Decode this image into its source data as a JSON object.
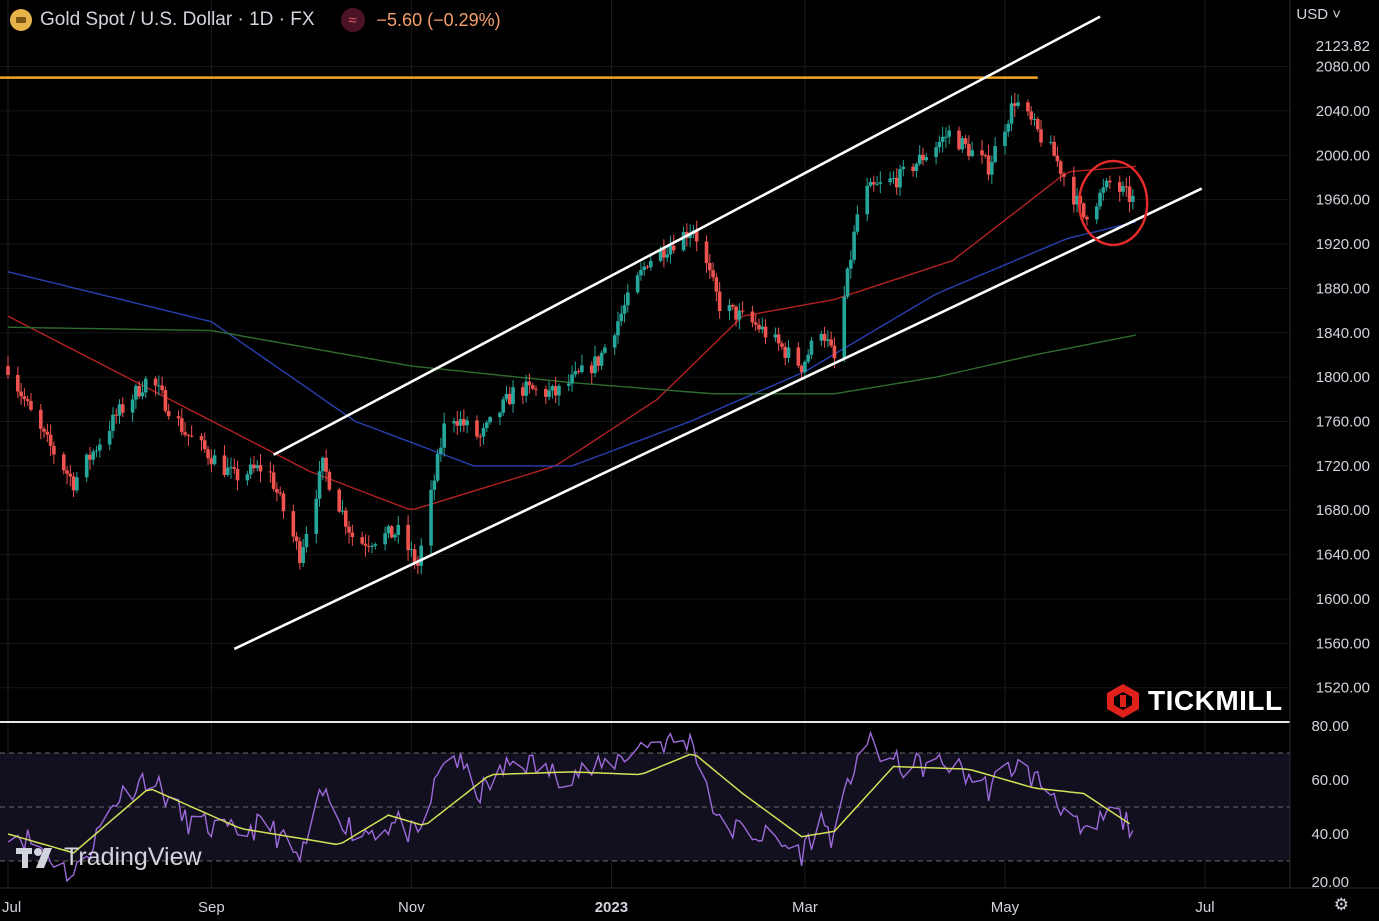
{
  "header": {
    "symbol_title": "Gold Spot / U.S. Dollar · 1D · FX",
    "change": "−5.60 (−0.29%)",
    "currency": "USD"
  },
  "branding": {
    "broker_logo_text": "TICKMILL",
    "platform_logo_text": "TradingView"
  },
  "icons": [
    "gold-coin-icon",
    "oscillator-icon",
    "chevron-down-icon",
    "tickmill-logo-icon",
    "tradingview-logo-icon",
    "settings-icon"
  ],
  "colors": {
    "background": "#000000",
    "up_candle": "#26a69a",
    "down_candle": "#ef5350",
    "resistance_line": "#f5a623",
    "channel_lines": "#ffffff",
    "ma_red": "#b22222",
    "ma_blue": "#2a3fb0",
    "ma_green": "#2e6b2e",
    "rsi_line": "#9c6ad9",
    "rsi_signal": "#d4e157",
    "highlight_circle": "#e32b2b"
  },
  "chart_data": [
    {
      "type": "candlestick",
      "title": "Gold Spot / U.S. Dollar · 1D · FX",
      "ylabel": "USD",
      "ylim": [
        1490,
        2140
      ],
      "yticks": [
        "2123.82",
        "2080.00",
        "2040.00",
        "2000.00",
        "1960.00",
        "1920.00",
        "1880.00",
        "1840.00",
        "1800.00",
        "1760.00",
        "1720.00",
        "1680.00",
        "1640.00",
        "1600.00",
        "1560.00",
        "1520.00"
      ],
      "xticks": [
        "Jul",
        "Sep",
        "Nov",
        "2023",
        "Mar",
        "May",
        "Jul"
      ],
      "last_price_label": "2123.82",
      "price_path": [
        {
          "x": "2022-07-01",
          "y": 1810
        },
        {
          "x": "2022-07-10",
          "y": 1755
        },
        {
          "x": "2022-07-21",
          "y": 1705
        },
        {
          "x": "2022-08-03",
          "y": 1765
        },
        {
          "x": "2022-08-13",
          "y": 1800
        },
        {
          "x": "2022-08-24",
          "y": 1750
        },
        {
          "x": "2022-09-08",
          "y": 1710
        },
        {
          "x": "2022-09-18",
          "y": 1720
        },
        {
          "x": "2022-09-28",
          "y": 1640
        },
        {
          "x": "2022-10-05",
          "y": 1720
        },
        {
          "x": "2022-10-15",
          "y": 1650
        },
        {
          "x": "2022-10-28",
          "y": 1660
        },
        {
          "x": "2022-11-03",
          "y": 1630
        },
        {
          "x": "2022-11-12",
          "y": 1770
        },
        {
          "x": "2022-11-22",
          "y": 1745
        },
        {
          "x": "2022-12-03",
          "y": 1790
        },
        {
          "x": "2022-12-15",
          "y": 1785
        },
        {
          "x": "2022-12-28",
          "y": 1815
        },
        {
          "x": "2023-01-12",
          "y": 1905
        },
        {
          "x": "2023-01-26",
          "y": 1935
        },
        {
          "x": "2023-02-03",
          "y": 1865
        },
        {
          "x": "2023-02-15",
          "y": 1845
        },
        {
          "x": "2023-02-28",
          "y": 1810
        },
        {
          "x": "2023-03-06",
          "y": 1845
        },
        {
          "x": "2023-03-10",
          "y": 1815
        },
        {
          "x": "2023-03-18",
          "y": 1965
        },
        {
          "x": "2023-03-30",
          "y": 1980
        },
        {
          "x": "2023-04-14",
          "y": 2020
        },
        {
          "x": "2023-04-26",
          "y": 1990
        },
        {
          "x": "2023-05-04",
          "y": 2050
        },
        {
          "x": "2023-05-16",
          "y": 2000
        },
        {
          "x": "2023-05-25",
          "y": 1945
        },
        {
          "x": "2023-06-02",
          "y": 1975
        },
        {
          "x": "2023-06-09",
          "y": 1960
        }
      ],
      "price_range": {
        "high": 2080,
        "low": 1615
      },
      "annotations": {
        "horizontal_resistance": 2070,
        "channel_upper": [
          {
            "x": "2022-09-20",
            "y": 1730
          },
          {
            "x": "2023-05-30",
            "y": 2125
          }
        ],
        "channel_lower": [
          {
            "x": "2022-09-08",
            "y": 1555
          },
          {
            "x": "2023-06-30",
            "y": 1970
          }
        ],
        "highlight_circle_center": {
          "x": "2023-06-03",
          "y": 1957
        }
      },
      "moving_averages": [
        {
          "color": "red",
          "path": [
            {
              "x": "2022-07-01",
              "y": 1855
            },
            {
              "x": "2022-10-01",
              "y": 1715
            },
            {
              "x": "2022-11-01",
              "y": 1680
            },
            {
              "x": "2022-12-15",
              "y": 1720
            },
            {
              "x": "2023-01-15",
              "y": 1780
            },
            {
              "x": "2023-02-10",
              "y": 1855
            },
            {
              "x": "2023-03-10",
              "y": 1870
            },
            {
              "x": "2023-04-15",
              "y": 1905
            },
            {
              "x": "2023-05-20",
              "y": 1985
            },
            {
              "x": "2023-06-10",
              "y": 1990
            }
          ]
        },
        {
          "color": "blue",
          "path": [
            {
              "x": "2022-07-01",
              "y": 1895
            },
            {
              "x": "2022-09-01",
              "y": 1850
            },
            {
              "x": "2022-10-15",
              "y": 1760
            },
            {
              "x": "2022-11-20",
              "y": 1720
            },
            {
              "x": "2022-12-20",
              "y": 1720
            },
            {
              "x": "2023-01-25",
              "y": 1760
            },
            {
              "x": "2023-03-01",
              "y": 1805
            },
            {
              "x": "2023-04-10",
              "y": 1875
            },
            {
              "x": "2023-05-20",
              "y": 1925
            },
            {
              "x": "2023-06-10",
              "y": 1940
            }
          ]
        },
        {
          "color": "green",
          "path": [
            {
              "x": "2022-07-01",
              "y": 1845
            },
            {
              "x": "2022-09-01",
              "y": 1842
            },
            {
              "x": "2022-11-01",
              "y": 1810
            },
            {
              "x": "2022-12-20",
              "y": 1795
            },
            {
              "x": "2023-02-01",
              "y": 1785
            },
            {
              "x": "2023-03-10",
              "y": 1785
            },
            {
              "x": "2023-04-10",
              "y": 1800
            },
            {
              "x": "2023-05-10",
              "y": 1820
            },
            {
              "x": "2023-06-10",
              "y": 1838
            }
          ]
        }
      ]
    },
    {
      "type": "line",
      "ylim": [
        20,
        80
      ],
      "yticks": [
        "80.00",
        "60.00",
        "40.00",
        "20.00"
      ],
      "bands": [
        30,
        50,
        70
      ],
      "series": [
        {
          "values_path": [
            {
              "x": "2022-07-01",
              "y": 42
            },
            {
              "x": "2022-07-10",
              "y": 36
            },
            {
              "x": "2022-07-21",
              "y": 24
            },
            {
              "x": "2022-08-03",
              "y": 53
            },
            {
              "x": "2022-08-13",
              "y": 62
            },
            {
              "x": "2022-08-24",
              "y": 45
            },
            {
              "x": "2022-09-08",
              "y": 40
            },
            {
              "x": "2022-09-18",
              "y": 44
            },
            {
              "x": "2022-09-28",
              "y": 30
            },
            {
              "x": "2022-10-05",
              "y": 55
            },
            {
              "x": "2022-10-15",
              "y": 40
            },
            {
              "x": "2022-10-28",
              "y": 44
            },
            {
              "x": "2022-11-03",
              "y": 38
            },
            {
              "x": "2022-11-12",
              "y": 72
            },
            {
              "x": "2022-11-22",
              "y": 55
            },
            {
              "x": "2022-12-03",
              "y": 68
            },
            {
              "x": "2022-12-15",
              "y": 62
            },
            {
              "x": "2022-12-28",
              "y": 64
            },
            {
              "x": "2023-01-12",
              "y": 74
            },
            {
              "x": "2023-01-26",
              "y": 74
            },
            {
              "x": "2023-02-03",
              "y": 43
            },
            {
              "x": "2023-02-15",
              "y": 40
            },
            {
              "x": "2023-02-28",
              "y": 33
            },
            {
              "x": "2023-03-06",
              "y": 45
            },
            {
              "x": "2023-03-10",
              "y": 38
            },
            {
              "x": "2023-03-18",
              "y": 75
            },
            {
              "x": "2023-03-30",
              "y": 65
            },
            {
              "x": "2023-04-14",
              "y": 66
            },
            {
              "x": "2023-04-26",
              "y": 57
            },
            {
              "x": "2023-05-04",
              "y": 66
            },
            {
              "x": "2023-05-16",
              "y": 55
            },
            {
              "x": "2023-05-25",
              "y": 38
            },
            {
              "x": "2023-06-02",
              "y": 48
            },
            {
              "x": "2023-06-09",
              "y": 43
            }
          ]
        },
        {
          "values_path": [
            {
              "x": "2022-07-01",
              "y": 40
            },
            {
              "x": "2022-07-21",
              "y": 33
            },
            {
              "x": "2022-08-13",
              "y": 57
            },
            {
              "x": "2022-09-10",
              "y": 42
            },
            {
              "x": "2022-10-10",
              "y": 36
            },
            {
              "x": "2022-10-25",
              "y": 47
            },
            {
              "x": "2022-11-05",
              "y": 43
            },
            {
              "x": "2022-11-25",
              "y": 62
            },
            {
              "x": "2022-12-20",
              "y": 63
            },
            {
              "x": "2023-01-10",
              "y": 62
            },
            {
              "x": "2023-01-26",
              "y": 70
            },
            {
              "x": "2023-02-10",
              "y": 55
            },
            {
              "x": "2023-02-28",
              "y": 39
            },
            {
              "x": "2023-03-10",
              "y": 41
            },
            {
              "x": "2023-03-28",
              "y": 65
            },
            {
              "x": "2023-04-20",
              "y": 64
            },
            {
              "x": "2023-05-10",
              "y": 57
            },
            {
              "x": "2023-05-25",
              "y": 55
            },
            {
              "x": "2023-06-09",
              "y": 43
            }
          ]
        }
      ]
    }
  ]
}
